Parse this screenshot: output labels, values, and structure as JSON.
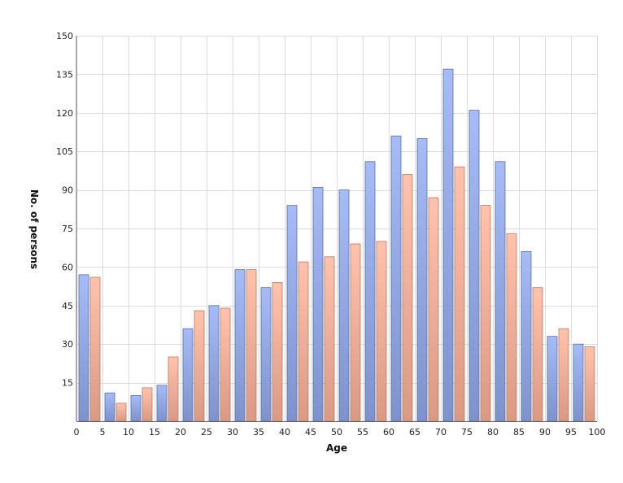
{
  "chart_data": {
    "type": "bar",
    "title": "",
    "xlabel": "Age",
    "ylabel": "No. of persons",
    "xlim": [
      0,
      100
    ],
    "ylim": [
      0,
      150
    ],
    "x_ticks": [
      0,
      5,
      10,
      15,
      20,
      25,
      30,
      35,
      40,
      45,
      50,
      55,
      60,
      65,
      70,
      75,
      80,
      85,
      90,
      95,
      100
    ],
    "y_ticks": [
      15,
      30,
      45,
      60,
      75,
      90,
      105,
      120,
      135,
      150
    ],
    "grid": true,
    "legend": "none",
    "bin_width": 5,
    "bin_starts": [
      0,
      5,
      10,
      15,
      20,
      25,
      30,
      35,
      40,
      45,
      50,
      55,
      60,
      65,
      70,
      75,
      80,
      85,
      90,
      95
    ],
    "series": [
      {
        "color": "#8fa6e6",
        "values": [
          57,
          11,
          10,
          14,
          36,
          45,
          59,
          52,
          84,
          91,
          90,
          101,
          111,
          110,
          137,
          121,
          101,
          66,
          33,
          30
        ]
      },
      {
        "color": "#f4ad96",
        "values": [
          56,
          7,
          13,
          25,
          43,
          44,
          59,
          54,
          62,
          64,
          69,
          70,
          96,
          87,
          99,
          84,
          73,
          52,
          36,
          29
        ]
      }
    ]
  }
}
